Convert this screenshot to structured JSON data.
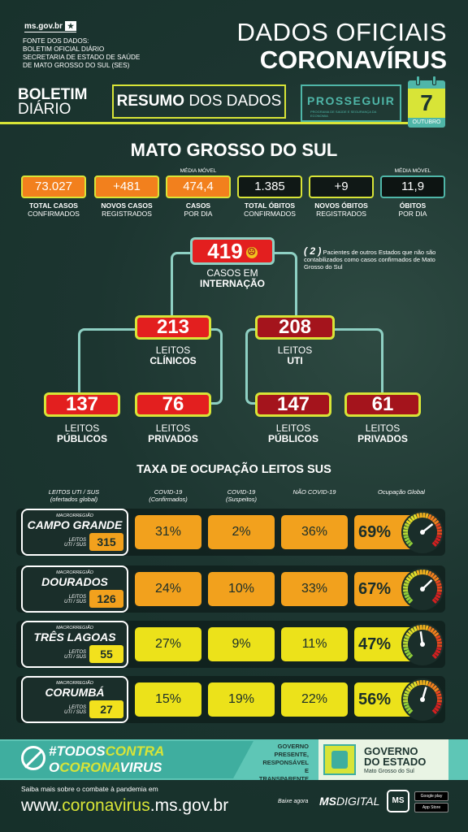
{
  "header": {
    "site": "ms.gov.br",
    "fonte": [
      "FONTE DOS DADOS:",
      "BOLETIM OFICIAL DIÁRIO",
      "SECRETARIA DE ESTADO DE SAÚDE",
      "DE MATO GROSSO DO SUL (SES)"
    ],
    "title_line1": "DADOS OFICIAIS",
    "title_line2": "CORONAVÍRUS",
    "boletim_a": "BOLETIM",
    "boletim_b": "DIÁRIO",
    "resumo_a": "RESUMO",
    "resumo_b": "DOS DADOS",
    "prosseguir": "PROSSEGUIR",
    "prosseguir_sub": "PROGRAMA DE SAÚDE E SEGURANÇA DA ECONOMIA",
    "day": "7",
    "month": "OUTUBRO"
  },
  "state": "MATO GROSSO DO SUL",
  "stats": [
    {
      "value": "73.027",
      "label_a": "TOTAL CASOS",
      "label_b": "CONFIRMADOS",
      "style": "orange"
    },
    {
      "value": "+481",
      "label_a": "NOVOS CASOS",
      "label_b": "REGISTRADOS",
      "style": "orange"
    },
    {
      "value": "474,4",
      "label_a": "CASOS",
      "label_b": "POR DIA",
      "style": "orange",
      "top": "MÉDIA MÓVEL"
    },
    {
      "value": "1.385",
      "label_a": "TOTAL ÓBITOS",
      "label_b": "CONFIRMADOS",
      "style": "black"
    },
    {
      "value": "+9",
      "label_a": "NOVOS ÓBITOS",
      "label_b": "REGISTRADOS",
      "style": "black"
    },
    {
      "value": "11,9",
      "label_a": "ÓBITOS",
      "label_b": "POR DIA",
      "style": "dark",
      "top": "MÉDIA MÓVEL"
    }
  ],
  "tree": {
    "internacao": "419",
    "internacao_label_a": "CASOS EM",
    "internacao_label_b": "INTERNAÇÃO",
    "note_num": "( 2 )",
    "note_text": "Pacientes de outros Estados que não são contabilizados como casos confirmados de Mato Grosso do Sul",
    "clinicos": "213",
    "clinicos_a": "LEITOS",
    "clinicos_b": "CLÍNICOS",
    "uti": "208",
    "uti_a": "LEITOS",
    "uti_b": "UTI",
    "clin_pub": "137",
    "clin_priv": "76",
    "uti_pub": "147",
    "uti_priv": "61",
    "leitos": "LEITOS",
    "publicos": "PÚBLICOS",
    "privados": "PRIVADOS"
  },
  "taxa": {
    "title": "TAXA DE OCUPAÇÃO LEITOS SUS",
    "col_leitos": "LEITOS UTI / SUS",
    "col_leitos_sub": "(ofertados global)",
    "col_conf": "COVID-19",
    "col_conf_sub": "(Confirmados)",
    "col_susp": "COVID-19",
    "col_susp_sub": "(Suspeitos)",
    "col_nao": "NÃO COVID-19",
    "col_global": "Ocupação Global",
    "macro_label": "MACRORREGIÃO",
    "leitos_label_a": "LEITOS",
    "leitos_label_b": "UTI / SUS",
    "rows": [
      {
        "name": "CAMPO GRANDE",
        "beds": "315",
        "conf": "31%",
        "susp": "2%",
        "nao": "36%",
        "global": "69%",
        "global_value": 69,
        "style": "o"
      },
      {
        "name": "DOURADOS",
        "beds": "126",
        "conf": "24%",
        "susp": "10%",
        "nao": "33%",
        "global": "67%",
        "global_value": 67,
        "style": "o"
      },
      {
        "name": "TRÊS LAGOAS",
        "beds": "55",
        "conf": "27%",
        "susp": "9%",
        "nao": "11%",
        "global": "47%",
        "global_value": 47,
        "style": "y"
      },
      {
        "name": "CORUMBÁ",
        "beds": "27",
        "conf": "15%",
        "susp": "19%",
        "nao": "22%",
        "global": "56%",
        "global_value": 56,
        "style": "y"
      }
    ]
  },
  "footer": {
    "todos_a": "#TODOS",
    "todos_b": "CONTRA",
    "todos_c": "O",
    "todos_d": "CORONA",
    "todos_e": "VIRUS",
    "gov_slogan": [
      "GOVERNO",
      "PRESENTE,",
      "RESPONSÁVEL E",
      "TRANSPARENTE"
    ],
    "gov_a": "GOVERNO",
    "gov_b": "DO ESTADO",
    "gov_c": "Mato Grosso do Sul",
    "saiba": "Saiba mais sobre o combate à pandemia em",
    "url_a": "www.",
    "url_b": "coronavirus",
    "url_c": ".ms.gov.br",
    "baixe": "Baixe agora",
    "msdigital_a": "MS",
    "msdigital_b": "DIGITAL",
    "ms_icon": "MS",
    "google": "Google play",
    "apple": "App Store"
  },
  "colors": {
    "accent": "#d8e437",
    "teal": "#4fb6a8",
    "orange": "#f2801d",
    "red": "#e31f1f",
    "darkred": "#a4141c"
  }
}
